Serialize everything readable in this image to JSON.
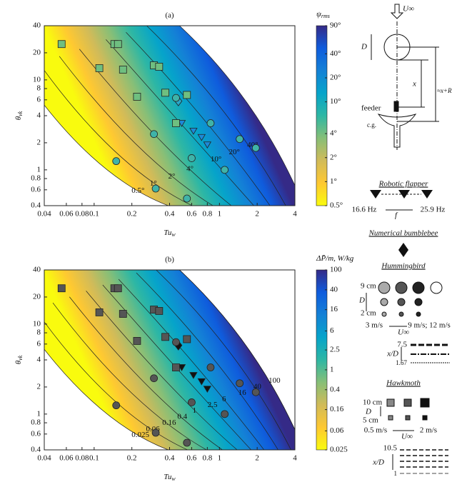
{
  "chart_data": [
    {
      "type": "contour",
      "title": "(a)",
      "xlabel": "Tu",
      "xlabel_sub": "w",
      "ylabel": "θ",
      "ylabel_sub": "vk",
      "colorbar_label": "ψ",
      "colorbar_label_sub": "rms",
      "log_x": true,
      "log_y": true,
      "xlim": [
        0.04,
        4
      ],
      "ylim": [
        0.4,
        40
      ],
      "xticks": [
        0.04,
        0.06,
        0.08,
        0.1,
        0.2,
        0.4,
        0.6,
        0.8,
        1,
        2,
        4
      ],
      "yticks": [
        0.4,
        0.6,
        0.8,
        1,
        2,
        4,
        6,
        8,
        10,
        20,
        40
      ],
      "clim": [
        0.5,
        90
      ],
      "colorbar_ticks": [
        {
          "value": 0.5,
          "label": "0.5°"
        },
        {
          "value": 1,
          "label": "1°"
        },
        {
          "value": 2,
          "label": "2°"
        },
        {
          "value": 4,
          "label": "4°"
        },
        {
          "value": 10,
          "label": "10°"
        },
        {
          "value": 20,
          "label": "20°"
        },
        {
          "value": 40,
          "label": "40°"
        },
        {
          "value": 90,
          "label": "90°"
        }
      ],
      "contours": [
        {
          "value": 0.5,
          "label": "0.5°"
        },
        {
          "value": 1,
          "label": "1°"
        },
        {
          "value": 2,
          "label": "2°"
        },
        {
          "value": 4,
          "label": "4°"
        },
        {
          "value": 10,
          "label": "10°"
        },
        {
          "value": 20,
          "label": "20°"
        },
        {
          "value": 40,
          "label": "40°"
        }
      ],
      "series": [
        {
          "name": "Robotic flapper",
          "marker": "triangle",
          "color": "#1d8ad8",
          "x": [
            0.5,
            0.62,
            0.72,
            0.8
          ],
          "values": [
            3.3,
            2.7,
            2.3,
            1.9
          ]
        },
        {
          "name": "Numerical bumblebee",
          "marker": "diamond",
          "color": "#2aa7c8",
          "x": [
            0.47
          ],
          "values": [
            5.8
          ]
        },
        {
          "name": "Hummingbird",
          "marker": "circle",
          "color": "#3fb3a8",
          "x": [
            1.95,
            1.45,
            0.85,
            0.45,
            1.1,
            0.6,
            0.3,
            0.15,
            0.31,
            0.55
          ],
          "values": [
            1.75,
            2.2,
            3.3,
            6.3,
            1.0,
            1.35,
            2.5,
            1.25,
            0.62,
            0.48
          ]
        },
        {
          "name": "Hawkmoth",
          "marker": "square",
          "color": "#6fbf80",
          "x": [
            0.055,
            0.11,
            0.145,
            0.155,
            0.3,
            0.33,
            0.55,
            0.17,
            0.22,
            0.37,
            0.45
          ],
          "values": [
            25,
            13.5,
            25,
            25,
            14.5,
            14,
            6.8,
            13,
            6.5,
            7.2,
            3.3
          ]
        }
      ]
    },
    {
      "type": "contour",
      "title": "(b)",
      "xlabel": "Tu",
      "xlabel_sub": "w",
      "ylabel": "θ",
      "ylabel_sub": "vk",
      "colorbar_label": "ΔP̄/m, W/kg",
      "log_x": true,
      "log_y": true,
      "xlim": [
        0.04,
        4
      ],
      "ylim": [
        0.4,
        40
      ],
      "xticks": [
        0.04,
        0.06,
        0.08,
        0.1,
        0.2,
        0.4,
        0.6,
        0.8,
        1,
        2,
        4
      ],
      "yticks": [
        0.4,
        0.6,
        0.8,
        1,
        2,
        4,
        6,
        8,
        10,
        20,
        40
      ],
      "clim": [
        0.025,
        100
      ],
      "colorbar_ticks": [
        0.025,
        0.06,
        0.16,
        0.4,
        1,
        2.5,
        6,
        16,
        40,
        100
      ],
      "contours": [
        0.025,
        0.06,
        0.16,
        0.4,
        1,
        2.5,
        6,
        16,
        40,
        100
      ],
      "series": [
        {
          "marker": "triangle",
          "color": "#111111",
          "x": [
            0.5,
            0.62,
            0.72,
            0.8
          ],
          "values": [
            3.3,
            2.7,
            2.3,
            1.9
          ]
        },
        {
          "marker": "diamond",
          "color": "#111111",
          "x": [
            0.47
          ],
          "values": [
            5.8
          ]
        },
        {
          "marker": "circle",
          "color": "#555555",
          "x": [
            1.95,
            1.45,
            0.85,
            0.45,
            1.1,
            0.6,
            0.3,
            0.15,
            0.31,
            0.55
          ],
          "values": [
            1.75,
            2.2,
            3.3,
            6.3,
            1.0,
            1.35,
            2.5,
            1.25,
            0.62,
            0.48
          ]
        },
        {
          "marker": "square",
          "color": "#555555",
          "x": [
            0.055,
            0.11,
            0.145,
            0.155,
            0.3,
            0.33,
            0.55,
            0.17,
            0.22,
            0.37,
            0.45
          ],
          "values": [
            25,
            13.5,
            25,
            25,
            14.5,
            14,
            6.8,
            13,
            6.5,
            7.2,
            3.3
          ]
        }
      ]
    }
  ],
  "schematic": {
    "u_inf": "U∞",
    "d": "D",
    "x": "x",
    "x_plus_r": "≈x+R",
    "feeder": "feeder",
    "cg": "c.g."
  },
  "legend": {
    "flapper": {
      "f_low": "16.6 Hz",
      "f": "f",
      "f_high": "25.9 Hz"
    },
    "hummingbird": {
      "d_high": "9 cm",
      "d": "D",
      "d_low": "2 cm",
      "u_low": "3 m/s",
      "u_high": "9 m/s; 12 m/s",
      "u": "U∞",
      "xd_high": "7.5",
      "xd": "x/D",
      "xd_low": "1.67"
    },
    "hawkmoth": {
      "d_high": "10 cm",
      "d": "D",
      "d_low": "5 cm",
      "u_low": "0.5 m/s",
      "u_high": "2 m/s",
      "u": "U∞",
      "xd_high": "10.5",
      "xd": "x/D",
      "xd_low": "1"
    }
  }
}
